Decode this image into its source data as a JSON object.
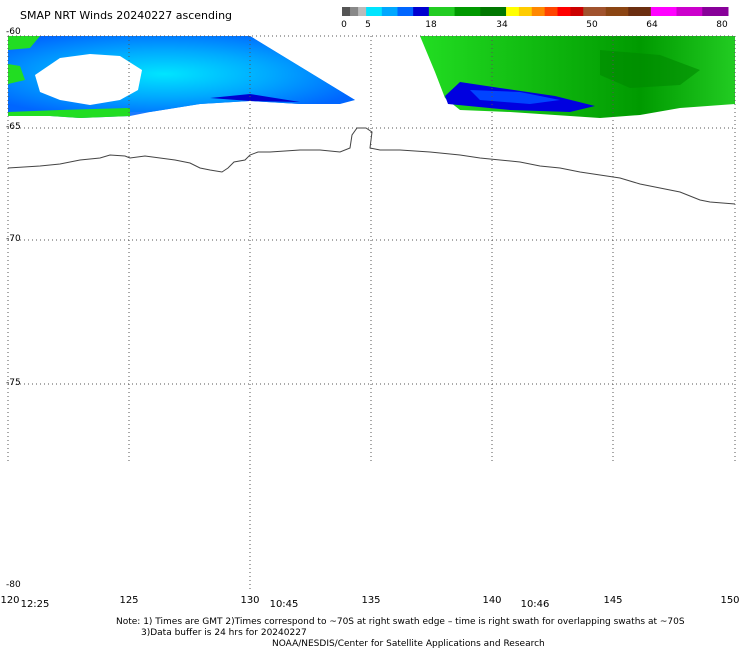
{
  "title": "SMAP NRT Winds 20240227 ascending",
  "color_scale": {
    "labels": [
      "0",
      "5",
      "18",
      "34",
      "50",
      "64",
      "80"
    ],
    "segments": [
      {
        "from": 0,
        "to": 5,
        "colors": [
          "#555555",
          "#888888",
          "#bbbbbb"
        ]
      },
      {
        "from": 5,
        "to": 18,
        "colors": [
          "#00e5ff",
          "#00a8ff",
          "#0066ff",
          "#0000d0"
        ]
      },
      {
        "from": 18,
        "to": 34,
        "colors": [
          "#22cc22",
          "#009900",
          "#007700"
        ]
      },
      {
        "from": 34,
        "to": 50,
        "colors": [
          "#ffff00",
          "#ffcc00",
          "#ff8800",
          "#ff4400",
          "#ff0000",
          "#cc0000"
        ]
      },
      {
        "from": 50,
        "to": 64,
        "colors": [
          "#a0522d",
          "#8b4513",
          "#6b2e10"
        ]
      },
      {
        "from": 64,
        "to": 80,
        "colors": [
          "#ff00ff",
          "#cc00cc",
          "#880099"
        ]
      }
    ]
  },
  "latitudes": [
    "-60",
    "-65",
    "-70",
    "-75",
    "-80"
  ],
  "longitudes": [
    "120",
    "125",
    "130",
    "135",
    "140",
    "145",
    "150"
  ],
  "pass_times": [
    "12:25",
    "10:45",
    "10:46"
  ],
  "notes": {
    "line1": "Note: 1) Times are GMT 2)Times correspond to ~70S at right swath edge – time is right swath for overlapping swaths at ~70S",
    "line2": "3)Data buffer is 24 hrs for 20240227",
    "line3": "NOAA/NESDIS/Center for Satellite Applications and Research"
  }
}
